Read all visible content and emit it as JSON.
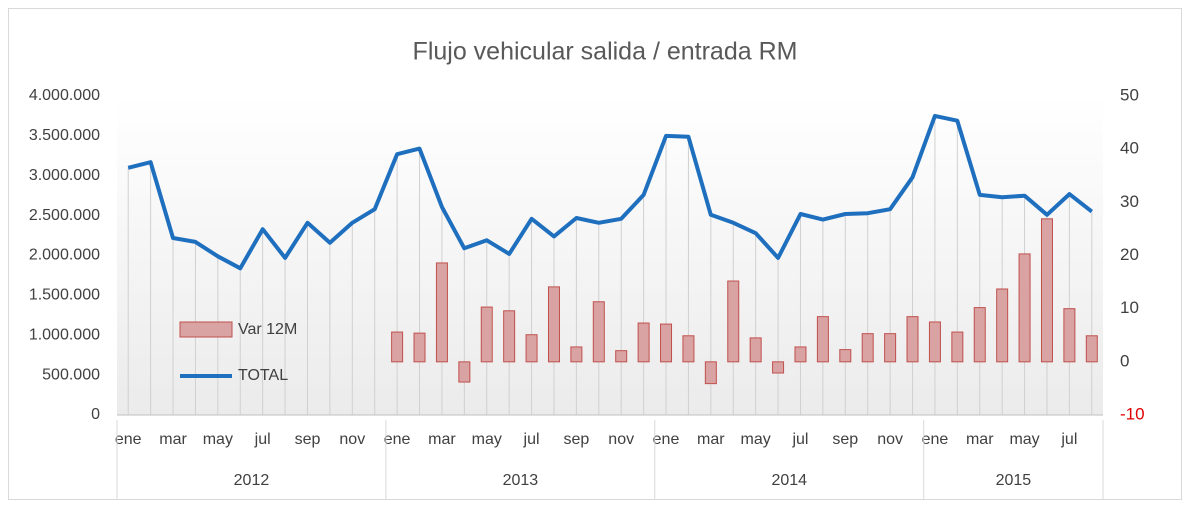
{
  "chart_data": {
    "type": "bar-line",
    "title": "Flujo vehicular salida / entrada RM",
    "categories": [
      "ene",
      null,
      "mar",
      null,
      "may",
      null,
      "jul",
      null,
      "sep",
      null,
      "nov",
      null,
      "ene",
      null,
      "mar",
      null,
      "may",
      null,
      "jul",
      null,
      "sep",
      null,
      "nov",
      null,
      "ene",
      null,
      "mar",
      null,
      "may",
      null,
      "jul",
      null,
      "sep",
      null,
      "nov",
      null,
      "ene",
      null,
      "mar",
      null,
      "may",
      null,
      "jul",
      null
    ],
    "years": [
      "2012",
      "2013",
      "2014",
      "2015"
    ],
    "series": [
      {
        "name": "Var 12M",
        "type": "bar",
        "axis": "y2",
        "color": "#d9a3a3",
        "stroke": "#c0504d",
        "values": [
          null,
          null,
          null,
          null,
          null,
          null,
          null,
          null,
          null,
          null,
          null,
          null,
          5.6,
          5.4,
          18.6,
          -3.8,
          10.3,
          9.6,
          5.1,
          14.1,
          2.8,
          11.3,
          2.1,
          7.3,
          7.1,
          4.9,
          -4.1,
          15.2,
          4.5,
          -2.1,
          2.8,
          8.5,
          2.3,
          5.3,
          5.3,
          8.5,
          7.5,
          5.6,
          10.2,
          13.7,
          20.3,
          26.9,
          10.0,
          4.9
        ]
      },
      {
        "name": "TOTAL",
        "type": "line",
        "color": "#1f6fbf",
        "values": [
          3100000,
          3170000,
          2220000,
          2170000,
          1990000,
          1840000,
          2330000,
          1970000,
          2410000,
          2160000,
          2410000,
          2580000,
          3270000,
          3340000,
          2610000,
          2090000,
          2190000,
          2020000,
          2460000,
          2240000,
          2470000,
          2410000,
          2460000,
          2760000,
          3500000,
          3490000,
          2510000,
          2410000,
          2280000,
          1970000,
          2520000,
          2450000,
          2520000,
          2530000,
          2580000,
          2980000,
          3750000,
          3690000,
          2760000,
          2730000,
          2750000,
          2510000,
          2770000,
          2550000
        ]
      }
    ],
    "ylim": [
      0,
      4000000
    ],
    "yticks": [
      {
        "value": 0,
        "label": "0"
      },
      {
        "value": 500000,
        "label": "500.000"
      },
      {
        "value": 1000000,
        "label": "1.000.000"
      },
      {
        "value": 1500000,
        "label": "1.500.000"
      },
      {
        "value": 2000000,
        "label": "2.000.000"
      },
      {
        "value": 2500000,
        "label": "2.500.000"
      },
      {
        "value": 3000000,
        "label": "3.000.000"
      },
      {
        "value": 3500000,
        "label": "3.500.000"
      },
      {
        "value": 4000000,
        "label": "4.000.000"
      }
    ],
    "y2lim": [
      -10,
      50
    ],
    "y2ticks": [
      -10,
      0,
      10,
      20,
      30,
      40,
      50
    ],
    "negative_tick_color": "#e00000",
    "drop_lines": true
  }
}
